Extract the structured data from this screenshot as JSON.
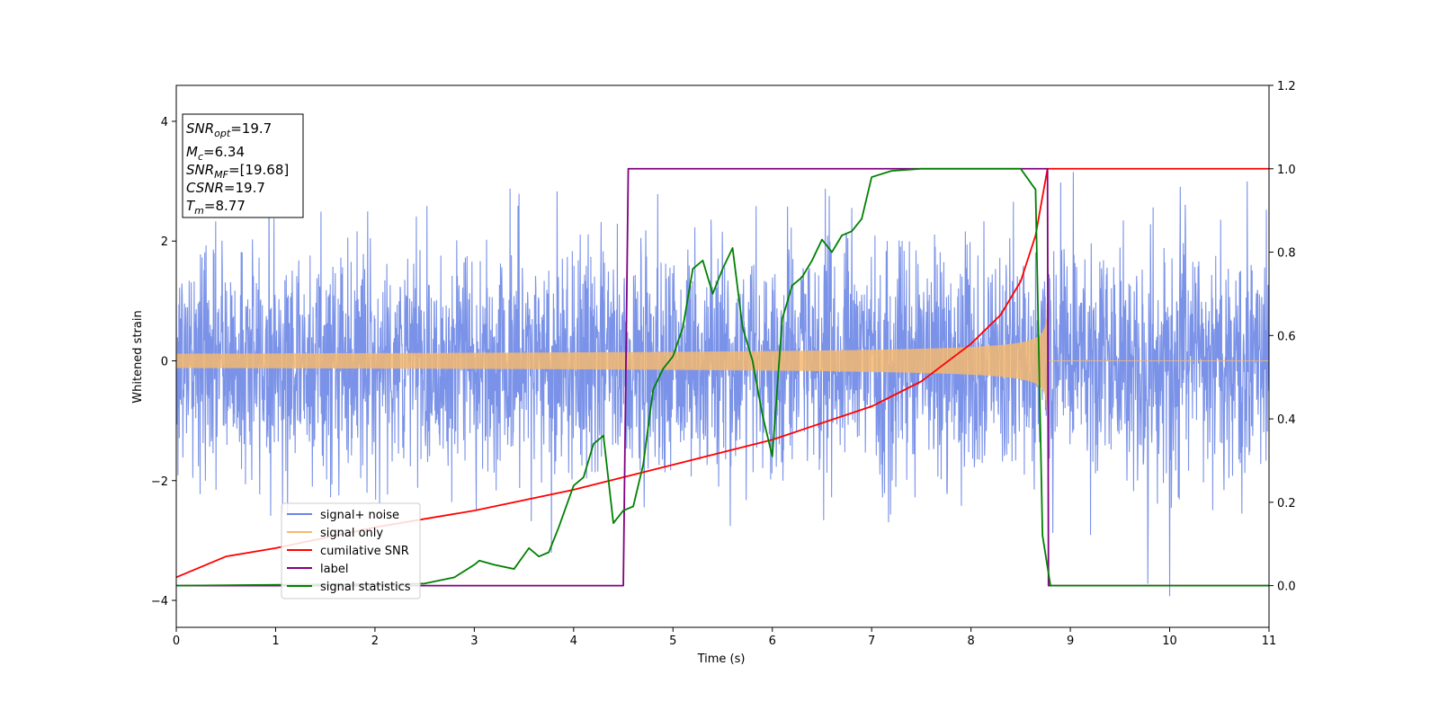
{
  "chart_data": {
    "type": "line",
    "title": "",
    "xlabel": "Time (s)",
    "ylabel": "Whitened strain",
    "xlim": [
      0,
      11
    ],
    "ylim": [
      -4.45,
      4.6
    ],
    "y2lim": [
      -0.1,
      1.2
    ],
    "xticks": [
      "0",
      "1",
      "2",
      "3",
      "4",
      "5",
      "6",
      "7",
      "8",
      "9",
      "10",
      "11"
    ],
    "yticks": [
      "4",
      "2",
      "0",
      "−2",
      "−4"
    ],
    "yticks_values": [
      4,
      2,
      0,
      -2,
      -4
    ],
    "y2ticks": [
      "1.2",
      "1.0",
      "0.8",
      "0.6",
      "0.4",
      "0.2",
      "0.0"
    ],
    "y2ticks_values": [
      1.2,
      1.0,
      0.8,
      0.6,
      0.4,
      0.2,
      0.0
    ],
    "grid": false,
    "legend_position": "lower-left",
    "annotation": {
      "snr_opt": {
        "base": "SNR",
        "sub": "opt",
        "value": "=19.7"
      },
      "mc": {
        "base": "M",
        "sub": "c",
        "value": "=6.34"
      },
      "snr_mf": {
        "base": "SNR",
        "sub": "MF",
        "value": "=[19.68]"
      },
      "csnr": {
        "base": "CSNR",
        "value": "=19.7"
      },
      "tm": {
        "base": "T",
        "sub": "m",
        "value": "=8.77"
      }
    },
    "series": [
      {
        "name": "signal+ noise",
        "color": "#6b86e6",
        "axis": "left",
        "noise_sigma": 1.0,
        "range": [
          0,
          11
        ]
      },
      {
        "name": "signal only",
        "color": "#f5b870",
        "axis": "left",
        "chirp_start": 0.12,
        "chirp_end_amp": 1.05,
        "merger_time": 8.77
      },
      {
        "name": "cumilative SNR",
        "color": "#ff0000",
        "axis": "right",
        "x": [
          0,
          0.5,
          1,
          2,
          3,
          4,
          4.5,
          5,
          6,
          7,
          7.5,
          8,
          8.3,
          8.5,
          8.65,
          8.77,
          9,
          11
        ],
        "values": [
          0.02,
          0.07,
          0.09,
          0.14,
          0.18,
          0.23,
          0.26,
          0.29,
          0.35,
          0.43,
          0.49,
          0.58,
          0.65,
          0.73,
          0.84,
          1.0,
          1.0,
          1.0
        ]
      },
      {
        "name": "label",
        "color": "#800080",
        "axis": "right",
        "x": [
          0,
          4.5,
          4.55,
          8.77,
          8.78,
          11
        ],
        "values": [
          0,
          0,
          1,
          1,
          0,
          0
        ]
      },
      {
        "name": "signal statistics",
        "color": "#008000",
        "axis": "right",
        "x": [
          0,
          2.5,
          2.8,
          3.0,
          3.05,
          3.2,
          3.4,
          3.55,
          3.65,
          3.75,
          3.85,
          4.0,
          4.1,
          4.2,
          4.3,
          4.4,
          4.5,
          4.6,
          4.7,
          4.8,
          4.9,
          5.0,
          5.1,
          5.2,
          5.3,
          5.4,
          5.5,
          5.6,
          5.7,
          5.8,
          5.9,
          6.0,
          6.1,
          6.2,
          6.3,
          6.4,
          6.5,
          6.6,
          6.7,
          6.8,
          6.9,
          7.0,
          7.2,
          7.5,
          8.0,
          8.5,
          8.65,
          8.72,
          8.8,
          9,
          11
        ],
        "values": [
          0,
          0.005,
          0.02,
          0.05,
          0.06,
          0.05,
          0.04,
          0.09,
          0.07,
          0.08,
          0.14,
          0.24,
          0.26,
          0.34,
          0.36,
          0.15,
          0.18,
          0.19,
          0.29,
          0.47,
          0.52,
          0.55,
          0.62,
          0.76,
          0.78,
          0.7,
          0.76,
          0.81,
          0.62,
          0.54,
          0.41,
          0.31,
          0.64,
          0.72,
          0.74,
          0.78,
          0.83,
          0.8,
          0.84,
          0.85,
          0.88,
          0.98,
          0.995,
          1.0,
          1.0,
          1.0,
          0.95,
          0.12,
          0.0,
          0.0,
          0.0
        ]
      }
    ]
  }
}
